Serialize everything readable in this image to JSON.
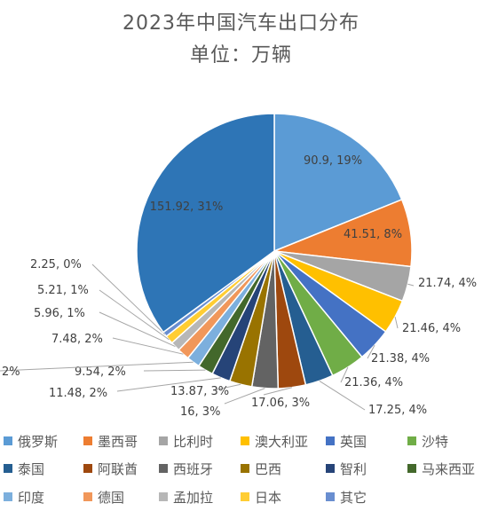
{
  "chart_data": {
    "type": "pie",
    "title": "2023年中国汽车出口分布",
    "subtitle": "单位：万辆",
    "legend_position": "bottom",
    "slices": [
      {
        "name": "俄罗斯",
        "value": 90.9,
        "percent": "19%",
        "label": "90.9, 19%",
        "color": "#5B9BD5"
      },
      {
        "name": "墨西哥",
        "value": 41.51,
        "percent": "8%",
        "label": "41.51, 8%",
        "color": "#ED7D31"
      },
      {
        "name": "比利时",
        "value": 21.74,
        "percent": "4%",
        "label": "21.74, 4%",
        "color": "#A5A5A5"
      },
      {
        "name": "澳大利亚",
        "value": 21.46,
        "percent": "4%",
        "label": "21.46, 4%",
        "color": "#FFC000"
      },
      {
        "name": "英国",
        "value": 21.38,
        "percent": "4%",
        "label": "21.38, 4%",
        "color": "#4472C4"
      },
      {
        "name": "沙特",
        "value": 21.36,
        "percent": "4%",
        "label": "21.36, 4%",
        "color": "#70AD47"
      },
      {
        "name": "泰国",
        "value": 17.25,
        "percent": "4%",
        "label": "17.25, 4%",
        "color": "#255E91"
      },
      {
        "name": "阿联酋",
        "value": 17.06,
        "percent": "3%",
        "label": "17.06, 3%",
        "color": "#9E480E"
      },
      {
        "name": "西班牙",
        "value": 16,
        "percent": "3%",
        "label": "16, 3%",
        "color": "#636363"
      },
      {
        "name": "巴西",
        "value": 13.87,
        "percent": "3%",
        "label": "13.87, 3%",
        "color": "#997300"
      },
      {
        "name": "智利",
        "value": 11.48,
        "percent": "2%",
        "label": "11.48, 2%",
        "color": "#264478"
      },
      {
        "name": "马来西亚",
        "value": 9.54,
        "percent": "2%",
        "label": "9.54, 2%",
        "color": "#43682B"
      },
      {
        "name": "印度",
        "value": null,
        "percent": "2%",
        "label": "2%",
        "color": "#7CAFDD"
      },
      {
        "name": "德国",
        "value": 7.48,
        "percent": "2%",
        "label": "7.48, 2%",
        "color": "#F1975A"
      },
      {
        "name": "孟加拉",
        "value": 5.96,
        "percent": "1%",
        "label": "5.96, 1%",
        "color": "#B7B7B7"
      },
      {
        "name": "日本",
        "value": 5.21,
        "percent": "1%",
        "label": "5.21, 1%",
        "color": "#FFCD33"
      },
      {
        "name": "其它",
        "value": 2.25,
        "percent": "0%",
        "label": "2.25, 0%",
        "color": "#698ED0"
      },
      {
        "name": "",
        "value": 151.92,
        "percent": "31%",
        "label": "151.92, 31%",
        "color": "#2E75B6"
      }
    ],
    "legend": [
      "俄罗斯",
      "墨西哥",
      "比利时",
      "澳大利亚",
      "英国",
      "沙特",
      "泰国",
      "阿联酋",
      "西班牙",
      "巴西",
      "智利",
      "马来西亚",
      "印度",
      "德国",
      "孟加拉",
      "日本",
      "其它"
    ]
  }
}
